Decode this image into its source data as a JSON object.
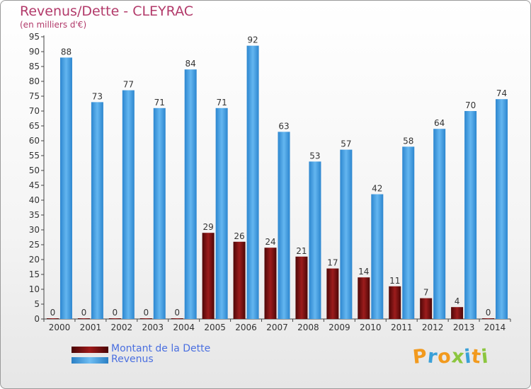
{
  "chart_data": {
    "type": "bar",
    "title": "Revenus/Dette - CLEYRAC",
    "subtitle": "(en milliers d'€)",
    "categories": [
      "2000",
      "2001",
      "2002",
      "2003",
      "2004",
      "2005",
      "2006",
      "2007",
      "2008",
      "2009",
      "2010",
      "2011",
      "2012",
      "2013",
      "2014"
    ],
    "series": [
      {
        "name": "Montant de la Dette",
        "color": "#7a0e0e",
        "values": [
          0,
          0,
          0,
          0,
          0,
          29,
          26,
          24,
          21,
          17,
          14,
          11,
          7,
          4,
          0
        ]
      },
      {
        "name": "Revenus",
        "color": "#4aa3e8",
        "values": [
          88,
          73,
          77,
          71,
          84,
          71,
          92,
          63,
          53,
          57,
          42,
          58,
          64,
          70,
          74
        ]
      }
    ],
    "ylim": [
      0,
      95
    ],
    "ytick_step": 5,
    "grid": false,
    "legend_placement": "bottom-left"
  },
  "logo": {
    "text": "Proxiti",
    "colors": [
      "#f29a1e",
      "#3aa0d8",
      "#f29a1e",
      "#8cc63f",
      "#3aa0d8",
      "#f29a1e",
      "#8cc63f"
    ]
  }
}
